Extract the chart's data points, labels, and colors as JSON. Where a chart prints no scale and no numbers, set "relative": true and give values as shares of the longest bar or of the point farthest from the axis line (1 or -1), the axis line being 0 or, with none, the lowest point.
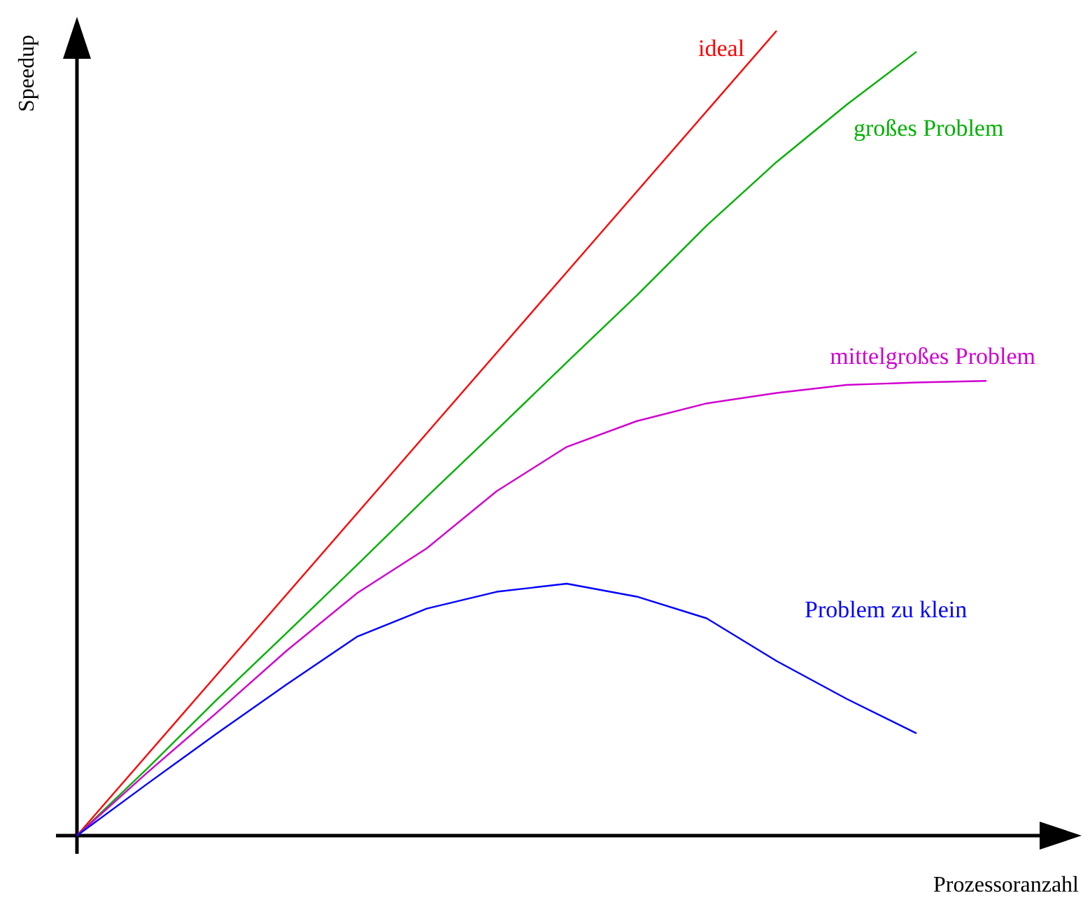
{
  "chart_data": {
    "type": "line",
    "relative": true,
    "xlabel": "Prozessoranzahl",
    "ylabel": "Speedup",
    "marker": "none",
    "line_style": "solid",
    "categories": [
      null,
      null,
      null,
      null,
      null,
      null,
      null,
      null,
      null,
      null,
      null,
      null,
      null,
      null
    ],
    "series": [
      {
        "name": "ideal",
        "color": "#ff0000",
        "values": [
          0,
          0.1,
          0.2,
          0.3,
          0.4,
          0.5,
          0.6,
          0.7,
          0.8,
          0.9,
          1,
          null,
          null,
          null
        ]
      },
      {
        "name": "großes Problem",
        "color": "#00b000",
        "values": [
          0,
          0.083,
          0.169,
          0.252,
          0.336,
          0.421,
          0.504,
          0.588,
          0.671,
          0.758,
          0.837,
          0.908,
          0.974,
          null
        ]
      },
      {
        "name": "mittelgroßes Problem",
        "color": "#d000d0",
        "values": [
          0,
          0.078,
          0.153,
          0.23,
          0.301,
          0.357,
          0.428,
          0.483,
          0.515,
          0.537,
          0.55,
          0.56,
          0.563,
          0.565
        ]
      },
      {
        "name": "Problem zu klein",
        "color": "#0000ff",
        "values": [
          0,
          0.064,
          0.127,
          0.188,
          0.247,
          0.282,
          0.303,
          0.313,
          0.297,
          0.27,
          0.217,
          0.17,
          0.127,
          null
        ]
      }
    ]
  }
}
